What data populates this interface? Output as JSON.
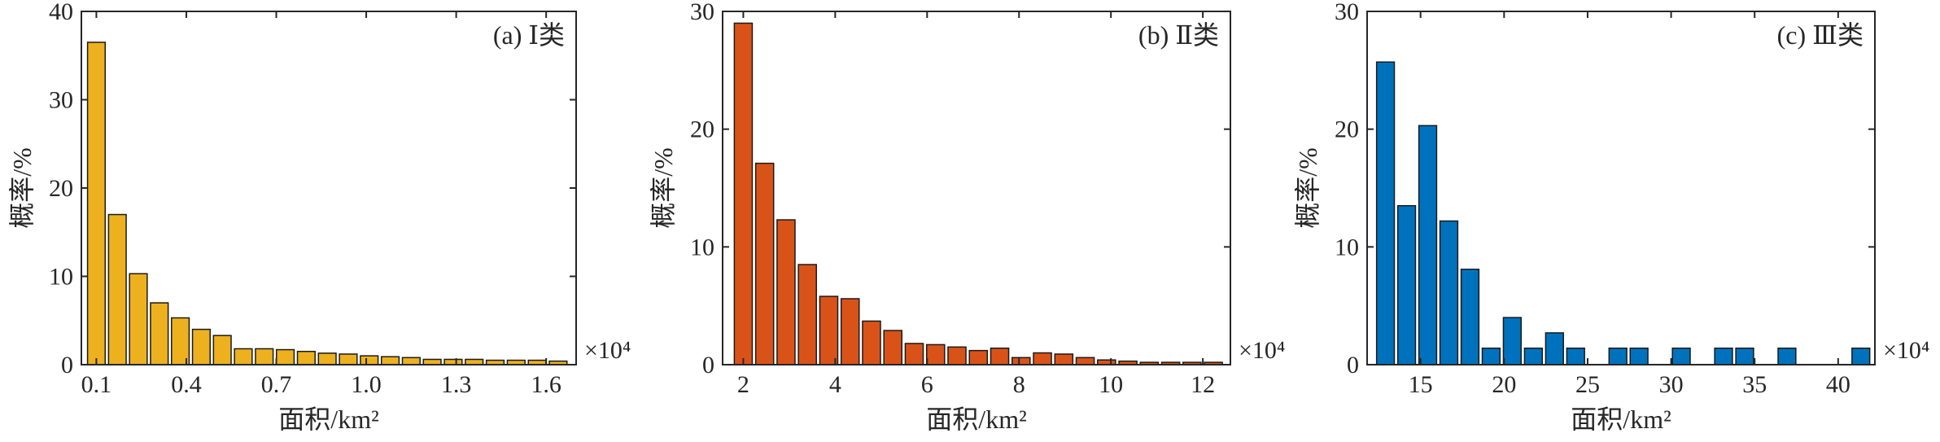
{
  "chart_data": [
    {
      "type": "bar",
      "title": "(a) Ⅰ类",
      "xlabel": "面积/km²",
      "ylabel": "概率/%",
      "x_multiplier": "×10⁴",
      "color": "#EDB120",
      "xlim": [
        0.05,
        1.7
      ],
      "ylim": [
        0,
        40
      ],
      "xticks": [
        0.1,
        0.4,
        0.7,
        1.0,
        1.3,
        1.6
      ],
      "xtick_labels": [
        "0.1",
        "0.4",
        "0.7",
        "1.0",
        "1.3",
        "1.6"
      ],
      "yticks": [
        0,
        10,
        20,
        30,
        40
      ],
      "ytick_labels": [
        "0",
        "10",
        "20",
        "30",
        "40"
      ],
      "bin_width": 0.07,
      "x": [
        0.1,
        0.17,
        0.24,
        0.31,
        0.38,
        0.45,
        0.52,
        0.59,
        0.66,
        0.73,
        0.8,
        0.87,
        0.94,
        1.01,
        1.08,
        1.15,
        1.22,
        1.29,
        1.36,
        1.43,
        1.5,
        1.57,
        1.64
      ],
      "values": [
        36.5,
        17.0,
        10.3,
        7.0,
        5.3,
        4.0,
        3.3,
        1.8,
        1.8,
        1.7,
        1.5,
        1.3,
        1.2,
        1.0,
        0.9,
        0.8,
        0.6,
        0.6,
        0.6,
        0.5,
        0.5,
        0.5,
        0.4
      ]
    },
    {
      "type": "bar",
      "title": "(b) Ⅱ类",
      "xlabel": "面积/km²",
      "ylabel": "概率/%",
      "x_multiplier": "×10⁴",
      "color": "#D95319",
      "xlim": [
        1.55,
        12.6
      ],
      "ylim": [
        0,
        30
      ],
      "xticks": [
        2,
        4,
        6,
        8,
        10,
        12
      ],
      "xtick_labels": [
        "2",
        "4",
        "6",
        "8",
        "10",
        "12"
      ],
      "yticks": [
        0,
        10,
        20,
        30
      ],
      "ytick_labels": [
        "0",
        "10",
        "20",
        "30"
      ],
      "bin_width": 0.465,
      "x": [
        2.0,
        2.465,
        2.93,
        3.395,
        3.86,
        4.325,
        4.79,
        5.255,
        5.72,
        6.185,
        6.65,
        7.115,
        7.58,
        8.045,
        8.51,
        8.975,
        9.44,
        9.905,
        10.37,
        10.835,
        11.3,
        11.765,
        12.23
      ],
      "values": [
        29.0,
        17.1,
        12.3,
        8.5,
        5.8,
        5.6,
        3.7,
        2.9,
        1.8,
        1.7,
        1.5,
        1.2,
        1.4,
        0.6,
        1.0,
        0.9,
        0.6,
        0.4,
        0.3,
        0.2,
        0.2,
        0.2,
        0.2
      ]
    },
    {
      "type": "bar",
      "title": "(c) Ⅲ类",
      "xlabel": "面积/km²",
      "ylabel": "概率/%",
      "x_multiplier": "×10⁴",
      "color": "#0072BD",
      "xlim": [
        11.8,
        42.2
      ],
      "ylim": [
        0,
        30
      ],
      "xticks": [
        15,
        20,
        25,
        30,
        35,
        40
      ],
      "xtick_labels": [
        "15",
        "20",
        "25",
        "30",
        "35",
        "40"
      ],
      "yticks": [
        0,
        10,
        20,
        30
      ],
      "yticks_labels_note": "",
      "ytick_labels": [
        "0",
        "10",
        "20",
        "30"
      ],
      "bin_width": 1.265,
      "x": [
        12.9,
        14.165,
        15.43,
        16.695,
        17.96,
        19.225,
        20.49,
        21.755,
        23.02,
        24.285,
        26.815,
        28.08,
        30.61,
        33.14,
        34.405,
        36.935,
        41.36
      ],
      "values": [
        25.7,
        13.5,
        20.3,
        12.2,
        8.1,
        1.4,
        4.0,
        1.4,
        2.7,
        1.4,
        1.4,
        1.4,
        1.4,
        1.4,
        1.4,
        1.4,
        1.4
      ]
    }
  ]
}
